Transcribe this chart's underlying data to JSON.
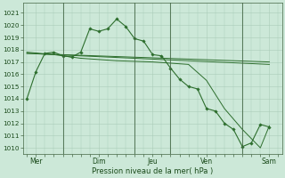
{
  "bg_color": "#cce8d8",
  "grid_color": "#aaccb8",
  "line_color": "#2d6e2d",
  "marker_color": "#2d6e2d",
  "ylabel_ticks": [
    1010,
    1011,
    1012,
    1013,
    1014,
    1015,
    1016,
    1017,
    1018,
    1019,
    1020,
    1021
  ],
  "ylim": [
    1009.5,
    1021.8
  ],
  "xlabel": "Pression niveau de la mer( hPa )",
  "xlim": [
    -0.2,
    14.2
  ],
  "vline_positions": [
    2.0,
    6.0,
    8.0,
    12.0
  ],
  "xtick_positions": [
    0.5,
    4.0,
    7.0,
    10.0,
    13.5
  ],
  "xtick_labels": [
    "Mer",
    "Dim",
    "Jeu",
    "Ven",
    "Sam"
  ],
  "series1": {
    "x": [
      0.0,
      0.5,
      1.0,
      1.5,
      2.0,
      2.5,
      3.0,
      3.5,
      4.0,
      4.5,
      5.0,
      5.5,
      6.0,
      6.5,
      7.0,
      7.5,
      8.0,
      8.5,
      9.0,
      9.5,
      10.0,
      10.5,
      11.0,
      11.5,
      12.0,
      12.5,
      13.0,
      13.5
    ],
    "y": [
      1014.0,
      1016.2,
      1017.7,
      1017.8,
      1017.5,
      1017.4,
      1017.8,
      1019.7,
      1019.5,
      1019.7,
      1020.5,
      1019.9,
      1018.9,
      1018.7,
      1017.6,
      1017.5,
      1016.5,
      1015.6,
      1015.0,
      1014.8,
      1013.2,
      1013.0,
      1012.0,
      1011.5,
      1010.1,
      1010.4,
      1011.9,
      1011.7
    ],
    "markers": true
  },
  "series2": {
    "x": [
      0.0,
      13.5
    ],
    "y": [
      1017.7,
      1017.0
    ],
    "markers": false
  },
  "series3": {
    "x": [
      0.0,
      13.5
    ],
    "y": [
      1017.7,
      1016.8
    ],
    "markers": false
  },
  "series4": {
    "x": [
      0.0,
      1.5,
      3.0,
      5.0,
      7.0,
      9.0,
      10.0,
      11.0,
      12.0,
      13.0,
      13.5
    ],
    "y": [
      1017.8,
      1017.6,
      1017.3,
      1017.1,
      1017.0,
      1016.8,
      1015.5,
      1013.2,
      1011.5,
      1010.0,
      1011.8
    ],
    "markers": false
  }
}
